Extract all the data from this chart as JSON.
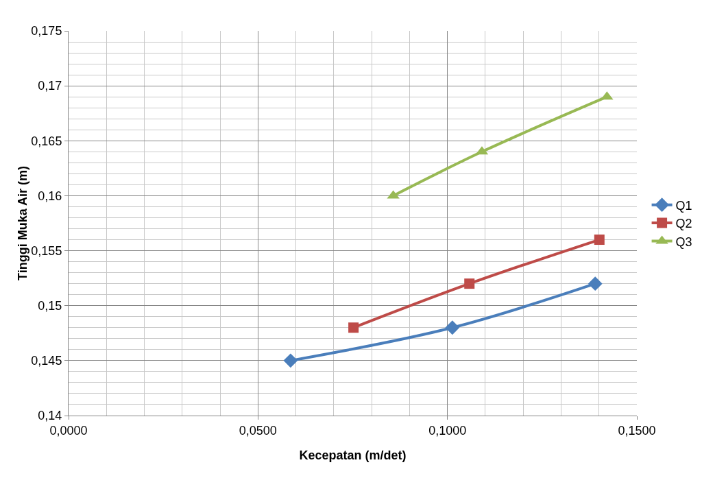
{
  "chart_data": {
    "type": "line",
    "xlabel": "Kecepatan (m/det)",
    "ylabel": "Tinggi Muka Air (m)",
    "xlim": [
      0,
      0.15
    ],
    "xticks": [
      {
        "value": 0,
        "label": "0,0000"
      },
      {
        "value": 0.05,
        "label": "0,0500"
      },
      {
        "value": 0.1,
        "label": "0,1000"
      },
      {
        "value": 0.15,
        "label": "0,1500"
      }
    ],
    "ylim": [
      0.14,
      0.175
    ],
    "yticks": [
      {
        "value": 0.14,
        "label": "0,14"
      },
      {
        "value": 0.145,
        "label": "0,145"
      },
      {
        "value": 0.15,
        "label": "0,15"
      },
      {
        "value": 0.155,
        "label": "0,155"
      },
      {
        "value": 0.16,
        "label": "0,16"
      },
      {
        "value": 0.165,
        "label": "0,165"
      },
      {
        "value": 0.17,
        "label": "0,17"
      },
      {
        "value": 0.175,
        "label": "0,175"
      }
    ],
    "grid": true,
    "legend": "right",
    "line_style": "solid",
    "series": [
      {
        "name": "Q1",
        "color": "#4a7ebb",
        "marker": "diamond",
        "x": [
          0.0586,
          0.1013,
          0.139
        ],
        "values": [
          0.145,
          0.148,
          0.152
        ]
      },
      {
        "name": "Q2",
        "color": "#be4b48",
        "marker": "square",
        "x": [
          0.0752,
          0.1058,
          0.1401
        ],
        "values": [
          0.148,
          0.152,
          0.156
        ]
      },
      {
        "name": "Q3",
        "color": "#98b954",
        "marker": "triangle",
        "x": [
          0.0857,
          0.1091,
          0.1421
        ],
        "values": [
          0.16,
          0.164,
          0.169
        ]
      }
    ]
  }
}
